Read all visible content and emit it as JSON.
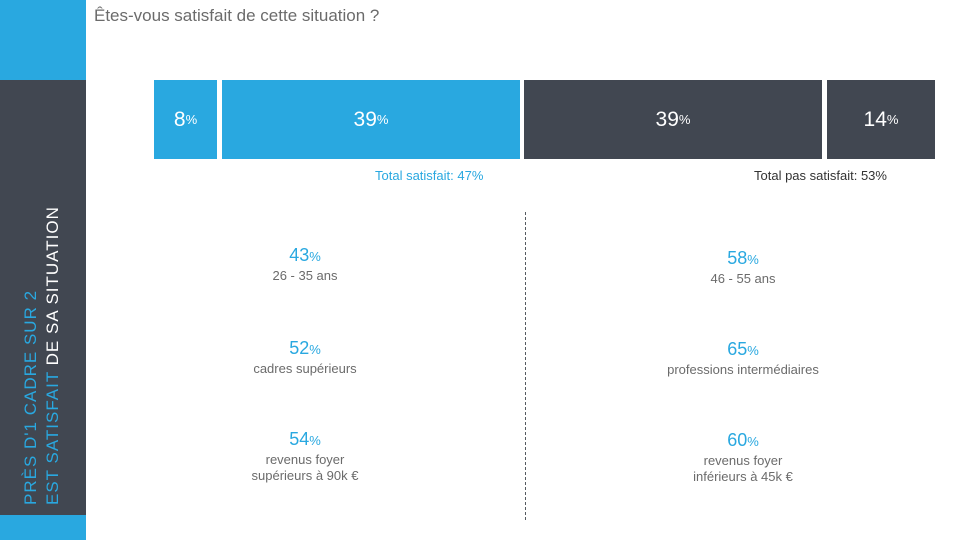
{
  "question": "Êtes-vous satisfait de cette situation ?",
  "sidebar": {
    "line1": "Près d'1 cadre sur 2",
    "line2_highlight": "est satisfait",
    "line2_rest": " de sa situation"
  },
  "chart_data": {
    "type": "bar",
    "orientation": "horizontal-stacked",
    "segments": [
      {
        "label": "8",
        "unit": "%",
        "value": 8,
        "color": "#29a8e0"
      },
      {
        "label": "39",
        "unit": "%",
        "value": 39,
        "color": "#29a8e0"
      },
      {
        "label": "39",
        "unit": "%",
        "value": 39,
        "color": "#414751"
      },
      {
        "label": "14",
        "unit": "%",
        "value": 14,
        "color": "#414751"
      }
    ]
  },
  "totals": {
    "satisfied": "Total satisfait: 47%",
    "not_satisfied": "Total pas satisfait: 53%"
  },
  "left_stats": [
    {
      "value": "43",
      "unit": "%",
      "lines": [
        "26 - 35 ans"
      ]
    },
    {
      "value": "52",
      "unit": "%",
      "lines": [
        "cadres supérieurs"
      ]
    },
    {
      "value": "54",
      "unit": "%",
      "lines": [
        "revenus foyer",
        "supérieurs à 90k €"
      ]
    }
  ],
  "right_stats": [
    {
      "value": "58",
      "unit": "%",
      "lines": [
        "46 - 55 ans"
      ]
    },
    {
      "value": "65",
      "unit": "%",
      "lines": [
        "professions intermédiaires"
      ]
    },
    {
      "value": "60",
      "unit": "%",
      "lines": [
        "revenus foyer",
        "inférieurs à 45k €"
      ]
    }
  ],
  "colors": {
    "blue": "#29a8e0",
    "dark": "#414751",
    "grey_text": "#6b6b6b"
  }
}
